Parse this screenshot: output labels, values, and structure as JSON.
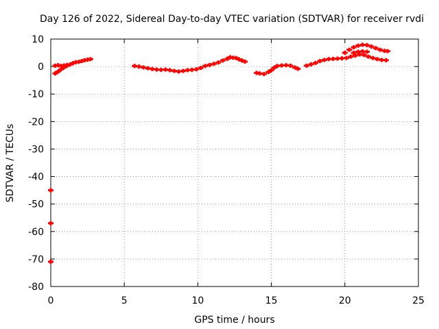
{
  "chart_data": {
    "type": "scatter",
    "title": "Day 126 of 2022, Sidereal Day-to-day VTEC variation (SDTVAR) for receiver rvdi",
    "xlabel": "GPS time / hours",
    "ylabel": "SDTVAR / TECUs",
    "xlim": [
      0,
      25
    ],
    "ylim": [
      -80,
      10
    ],
    "xticks": [
      0,
      5,
      10,
      15,
      20,
      25
    ],
    "yticks": [
      10,
      0,
      -10,
      -20,
      -30,
      -40,
      -50,
      -60,
      -70,
      -80
    ],
    "grid": true,
    "marker": "+",
    "color": "#ff0000",
    "series": [
      {
        "name": "track-1",
        "points": [
          [
            0.3,
            -2.5
          ],
          [
            0.5,
            -1.8
          ],
          [
            0.7,
            -1.0
          ],
          [
            0.9,
            -0.3
          ],
          [
            1.1,
            0.3
          ],
          [
            1.3,
            0.7
          ],
          [
            1.5,
            1.2
          ],
          [
            1.7,
            1.6
          ],
          [
            1.9,
            1.7
          ],
          [
            2.1,
            2.0
          ],
          [
            2.3,
            2.3
          ],
          [
            2.5,
            2.5
          ],
          [
            2.7,
            2.7
          ]
        ]
      },
      {
        "name": "track-2",
        "points": [
          [
            0.3,
            0.3
          ],
          [
            0.5,
            0.5
          ],
          [
            0.7,
            0.2
          ],
          [
            0.9,
            0.4
          ],
          [
            1.1,
            0.6
          ]
        ]
      },
      {
        "name": "track-3",
        "points": [
          [
            5.7,
            0.2
          ],
          [
            6.0,
            0.0
          ],
          [
            6.3,
            -0.3
          ],
          [
            6.6,
            -0.6
          ],
          [
            6.9,
            -0.9
          ],
          [
            7.2,
            -1.1
          ],
          [
            7.5,
            -1.2
          ],
          [
            7.8,
            -1.1
          ],
          [
            8.1,
            -1.3
          ],
          [
            8.4,
            -1.6
          ],
          [
            8.7,
            -1.8
          ],
          [
            9.0,
            -1.6
          ],
          [
            9.3,
            -1.3
          ],
          [
            9.6,
            -1.2
          ],
          [
            9.9,
            -1.0
          ],
          [
            10.2,
            -0.5
          ],
          [
            10.5,
            0.2
          ],
          [
            10.8,
            0.6
          ],
          [
            11.1,
            1.0
          ],
          [
            11.4,
            1.5
          ],
          [
            11.7,
            2.2
          ],
          [
            12.0,
            2.8
          ],
          [
            12.2,
            3.4
          ],
          [
            12.4,
            3.2
          ],
          [
            12.6,
            3.1
          ],
          [
            12.8,
            2.6
          ],
          [
            13.0,
            2.2
          ],
          [
            13.2,
            1.8
          ]
        ]
      },
      {
        "name": "track-4",
        "points": [
          [
            14.0,
            -2.3
          ],
          [
            14.2,
            -2.5
          ],
          [
            14.5,
            -2.7
          ],
          [
            14.8,
            -2.0
          ],
          [
            15.0,
            -1.3
          ],
          [
            15.2,
            -0.4
          ],
          [
            15.4,
            0.2
          ],
          [
            15.7,
            0.4
          ],
          [
            16.0,
            0.5
          ],
          [
            16.3,
            0.3
          ],
          [
            16.6,
            -0.3
          ],
          [
            16.8,
            -0.8
          ]
        ]
      },
      {
        "name": "track-5",
        "points": [
          [
            17.4,
            0.3
          ],
          [
            17.7,
            0.8
          ],
          [
            18.0,
            1.3
          ],
          [
            18.3,
            2.0
          ],
          [
            18.6,
            2.4
          ],
          [
            18.9,
            2.7
          ],
          [
            19.2,
            2.8
          ],
          [
            19.5,
            2.9
          ],
          [
            19.8,
            3.0
          ],
          [
            20.1,
            3.1
          ],
          [
            20.4,
            3.6
          ],
          [
            20.7,
            4.0
          ],
          [
            21.0,
            4.4
          ],
          [
            21.3,
            4.2
          ],
          [
            21.6,
            3.6
          ],
          [
            21.9,
            3.1
          ],
          [
            22.2,
            2.7
          ],
          [
            22.5,
            2.4
          ],
          [
            22.8,
            2.3
          ]
        ]
      },
      {
        "name": "track-6",
        "points": [
          [
            20.0,
            5.0
          ],
          [
            20.3,
            6.1
          ],
          [
            20.6,
            7.0
          ],
          [
            20.9,
            7.6
          ],
          [
            21.2,
            7.9
          ],
          [
            21.5,
            7.8
          ],
          [
            21.8,
            7.3
          ],
          [
            22.1,
            6.7
          ],
          [
            22.4,
            6.1
          ],
          [
            22.7,
            5.7
          ],
          [
            22.9,
            5.6
          ]
        ]
      },
      {
        "name": "track-7",
        "points": [
          [
            20.6,
            5.0
          ],
          [
            20.9,
            5.4
          ],
          [
            21.2,
            5.5
          ],
          [
            21.5,
            5.4
          ]
        ]
      },
      {
        "name": "outliers",
        "points": [
          [
            0.0,
            -45.0
          ],
          [
            0.0,
            -57.0
          ],
          [
            0.0,
            -71.0
          ]
        ]
      }
    ]
  }
}
